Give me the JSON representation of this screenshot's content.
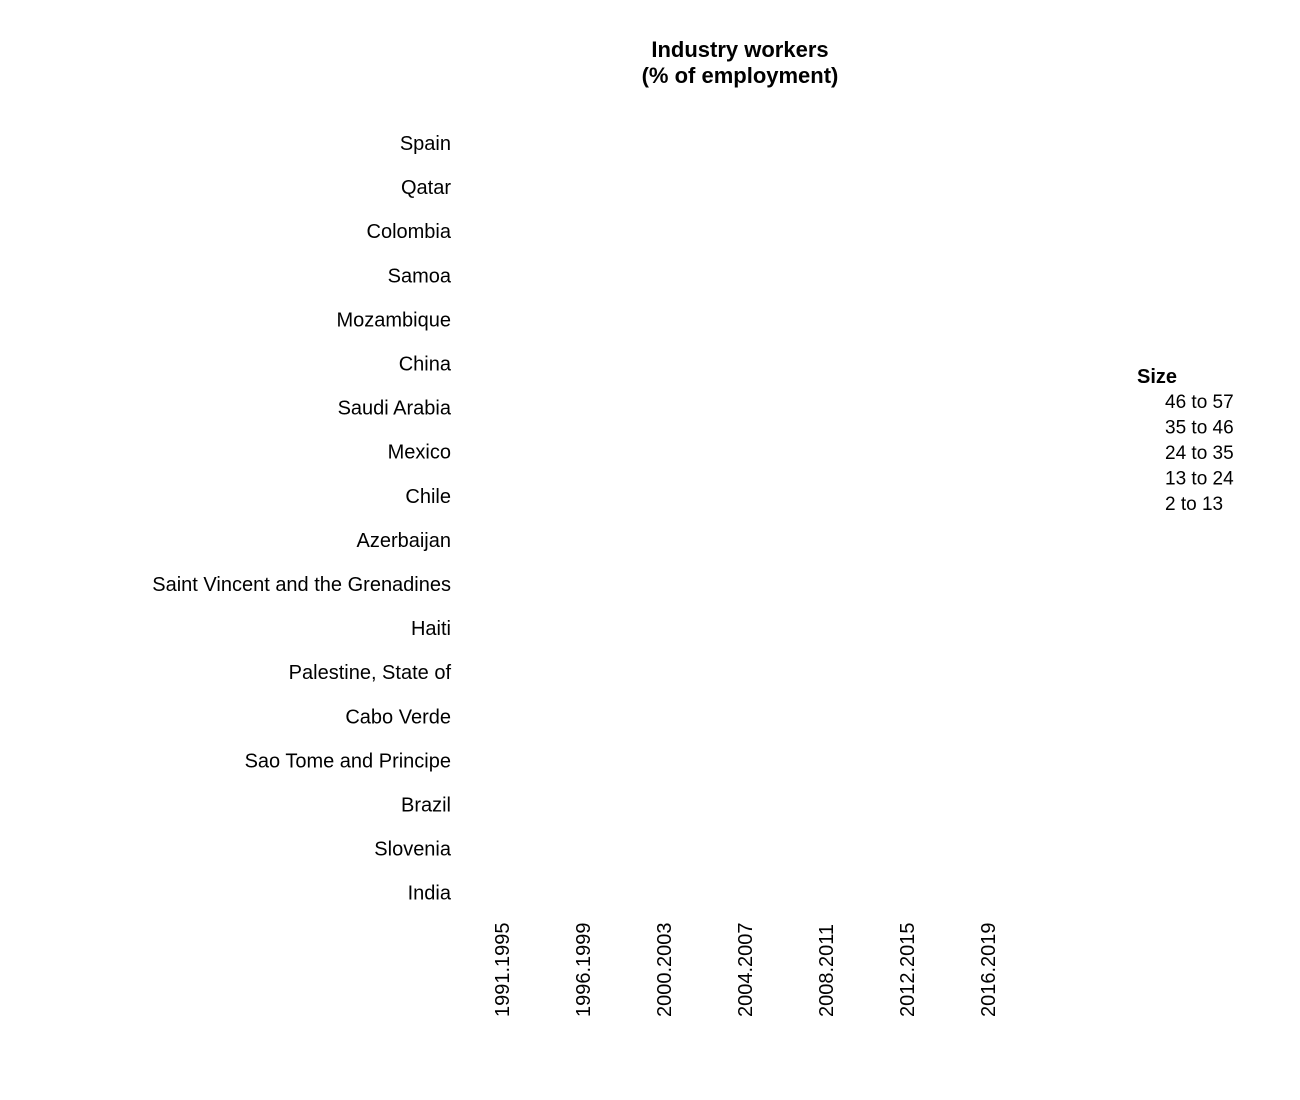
{
  "chart_data": {
    "type": "scatter",
    "title_lines": [
      "Industry workers",
      "(% of employment)"
    ],
    "y_categories": [
      "Spain",
      "Qatar",
      "Colombia",
      "Samoa",
      "Mozambique",
      "China",
      "Saudi Arabia",
      "Mexico",
      "Chile",
      "Azerbaijan",
      "Saint Vincent and the Grenadines",
      "Haiti",
      "Palestine, State of",
      "Cabo Verde",
      "Sao Tome and Principe",
      "Brazil",
      "Slovenia",
      "India"
    ],
    "x_categories": [
      "1991.1995",
      "1996.1999",
      "2000.2003",
      "2004.2007",
      "2008.2011",
      "2012.2015",
      "2016.2019"
    ],
    "points": [],
    "legend": {
      "title": "Size",
      "position": "right",
      "entries": [
        "46 to 57",
        "35 to 46",
        "24 to 35",
        "13 to 24",
        "2 to 13"
      ]
    },
    "grid": false
  }
}
